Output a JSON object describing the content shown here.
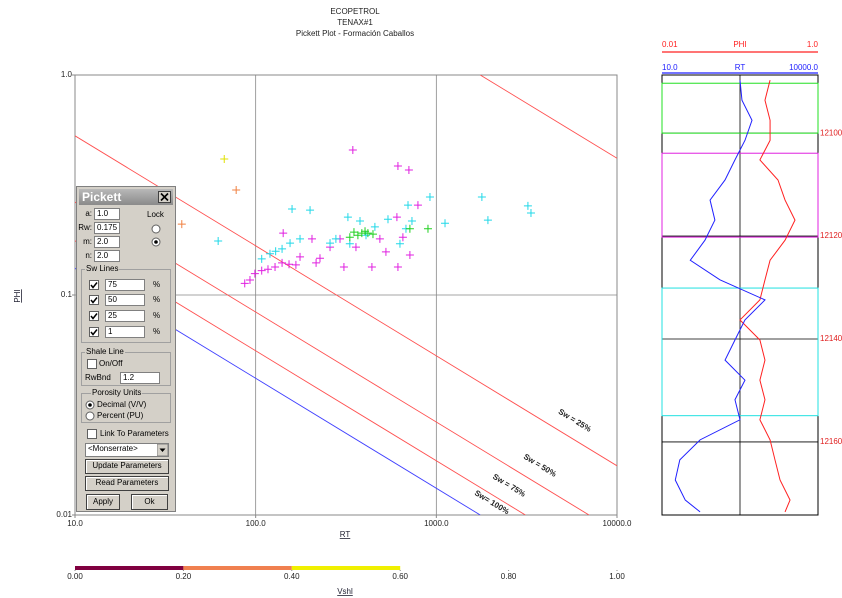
{
  "chart_data": [
    {
      "type": "scatter",
      "title": [
        "ECOPETROL",
        "TENAX#1",
        "Pickett Plot - Formación Caballos"
      ],
      "x_label": "RT",
      "y_label": "PHI",
      "xscale": "log",
      "yscale": "log",
      "xlim": [
        10,
        10000
      ],
      "ylim": [
        0.01,
        1
      ],
      "xticks": [
        {
          "value": 10,
          "label": "10.0"
        },
        {
          "value": 100,
          "label": "100.0"
        },
        {
          "value": 1000,
          "label": "1000.0"
        },
        {
          "value": 10000,
          "label": "10000.0"
        }
      ],
      "yticks": [
        0.01,
        0.1,
        {
          "value": 1,
          "label": "1.0"
        }
      ],
      "grid": true,
      "archie": {
        "a": 1,
        "rw": 0.175,
        "m": 2,
        "n": 2
      },
      "sw_lines": [
        {
          "sw": 100,
          "color": "#4040ff",
          "label": "Sw= 100%"
        },
        {
          "sw": 75,
          "color": "#ff5050",
          "label": "Sw = 75%"
        },
        {
          "sw": 50,
          "color": "#ff5050",
          "label": "Sw = 50%"
        },
        {
          "sw": 25,
          "color": "#ff5050",
          "label": "Sw = 25%"
        },
        {
          "sw": 1,
          "color": "#ff5050"
        }
      ],
      "series": [
        {
          "color": "#e020e0",
          "x": [
            345,
            613,
            705,
            791,
            87,
            93,
            99,
            108,
            117,
            128,
            140,
            153,
            167,
            176,
            142,
            205,
            216,
            227,
            258,
            293,
            308,
            359,
            440,
            487,
            613,
            653,
            714,
            605,
            526
          ],
          "values": [
            0.456,
            0.386,
            0.37,
            0.256,
            0.113,
            0.117,
            0.125,
            0.129,
            0.131,
            0.134,
            0.14,
            0.138,
            0.137,
            0.149,
            0.191,
            0.18,
            0.14,
            0.147,
            0.165,
            0.18,
            0.134,
            0.165,
            0.134,
            0.18,
            0.134,
            0.183,
            0.152,
            0.226,
            0.157
          ]
        },
        {
          "color": "#20d8e8",
          "x": [
            62,
            108,
            120,
            129,
            140,
            155,
            176,
            159,
            200,
            258,
            278,
            324,
            378,
            457,
            540,
            629,
            679,
            733,
            922,
            1117,
            1787,
            1930,
            3213,
            3341,
            332,
            408,
            697
          ],
          "values": [
            0.176,
            0.146,
            0.154,
            0.158,
            0.162,
            0.172,
            0.18,
            0.246,
            0.243,
            0.172,
            0.18,
            0.226,
            0.217,
            0.204,
            0.221,
            0.171,
            0.2,
            0.217,
            0.279,
            0.212,
            0.279,
            0.219,
            0.254,
            0.236,
            0.171,
            0.187,
            0.256
          ]
        },
        {
          "color": "#20d020",
          "x": [
            332,
            350,
            368,
            387,
            403,
            418,
            446,
            714,
            899
          ],
          "values": [
            0.183,
            0.193,
            0.187,
            0.191,
            0.195,
            0.191,
            0.189,
            0.2,
            0.2
          ]
        },
        {
          "color": "#f08040",
          "x": [
            78,
            39
          ],
          "values": [
            0.3,
            0.21
          ]
        },
        {
          "color": "#e0e000",
          "x": [
            67
          ],
          "values": [
            0.415
          ]
        }
      ],
      "colorbar": {
        "label": "Vshl",
        "lim": [
          0,
          1
        ],
        "ticks": [
          {
            "value": 0,
            "label": "0.00"
          },
          {
            "value": 0.2,
            "label": "0.20"
          },
          {
            "value": 0.4,
            "label": "0.40"
          },
          {
            "value": 0.6,
            "label": "0.60"
          },
          {
            "value": 0.8,
            "label": "0.80"
          },
          {
            "value": 1,
            "label": "1.00"
          }
        ],
        "segments": [
          {
            "from": 0,
            "to": 0.2,
            "color": "#800040"
          },
          {
            "from": 0.2,
            "to": 0.4,
            "color": "#f08050"
          },
          {
            "from": 0.4,
            "to": 0.6,
            "color": "#f0f000"
          }
        ]
      }
    },
    {
      "type": "line",
      "orientation": "vertical",
      "ylim": [
        12088.7,
        12174.2
      ],
      "yticks": [
        {
          "value": 12100,
          "label": "12100.0"
        },
        {
          "value": 12120,
          "label": "12120.0"
        },
        {
          "value": 12140,
          "label": "12140.0"
        },
        {
          "value": 12160,
          "label": "12160.0"
        }
      ],
      "zones": [
        {
          "top": 12090.3,
          "bottom": 12100,
          "color": "#20e020"
        },
        {
          "top": 12103.9,
          "bottom": 12120.2,
          "color": "#e020e0"
        },
        {
          "top": 12130.1,
          "bottom": 12154.9,
          "color": "#20e0e0"
        }
      ],
      "x": [
        12089.7,
        12093.6,
        12097.5,
        12101.4,
        12105.2,
        12109.1,
        12113.0,
        12116.9,
        12120.8,
        12124.7,
        12128.5,
        12132.4,
        12136.3,
        12140.2,
        12144.1,
        12148.0,
        12151.8,
        12155.7,
        12159.6,
        12163.5,
        12167.4,
        12171.3,
        12173.6
      ],
      "series": [
        {
          "name": "PHI",
          "color": "#ff2020",
          "scale": "log",
          "xlim": [
            0.01,
            {
              "value": 1,
              "label": "1.0"
            }
          ],
          "values": [
            0.243,
            0.209,
            0.243,
            0.243,
            0.18,
            0.307,
            0.378,
            0.507,
            0.378,
            0.243,
            0.209,
            0.18,
            0.1,
            0.18,
            0.209,
            0.18,
            0.209,
            0.18,
            0.243,
            0.281,
            0.326,
            0.438,
            0.378
          ]
        },
        {
          "name": "RT",
          "color": "#2020ff",
          "scale": "log",
          "xlim": [
            {
              "value": 10,
              "label": "10.0"
            },
            {
              "value": 10000,
              "label": "10000.0"
            }
          ],
          "values": [
            316,
            345,
            538,
            394,
            253,
            163,
            84,
            104,
            67,
            35,
            130,
            957,
            394,
            253,
            163,
            394,
            253,
            316,
            54,
            22,
            18,
            28,
            54
          ]
        }
      ]
    }
  ],
  "dialog": {
    "title": "Pickett",
    "fields": [
      {
        "label": "a:",
        "value": "1.0"
      },
      {
        "label": "Rw:",
        "value": "0.175"
      },
      {
        "label": "m:",
        "value": "2.0"
      },
      {
        "label": "n:",
        "value": "2.0"
      }
    ],
    "lock": "Lock",
    "sw_group": "Sw Lines",
    "sw_values": [
      "75",
      "50",
      "25",
      "1"
    ],
    "unit": "%",
    "shale_group": "Shale Line",
    "shale_toggle": "On/Off",
    "rwbnd_label": "RwBnd",
    "rwbnd_value": "1.2",
    "porosity_group": "Porosity Units",
    "porosity_options": [
      "Decimal (V/V)",
      "Percent (PU)"
    ],
    "link": "Link To Parameters",
    "zone": "<Monserrate>",
    "buttons": [
      "Update Parameters",
      "Read Parameters",
      "Apply",
      "Ok"
    ]
  }
}
